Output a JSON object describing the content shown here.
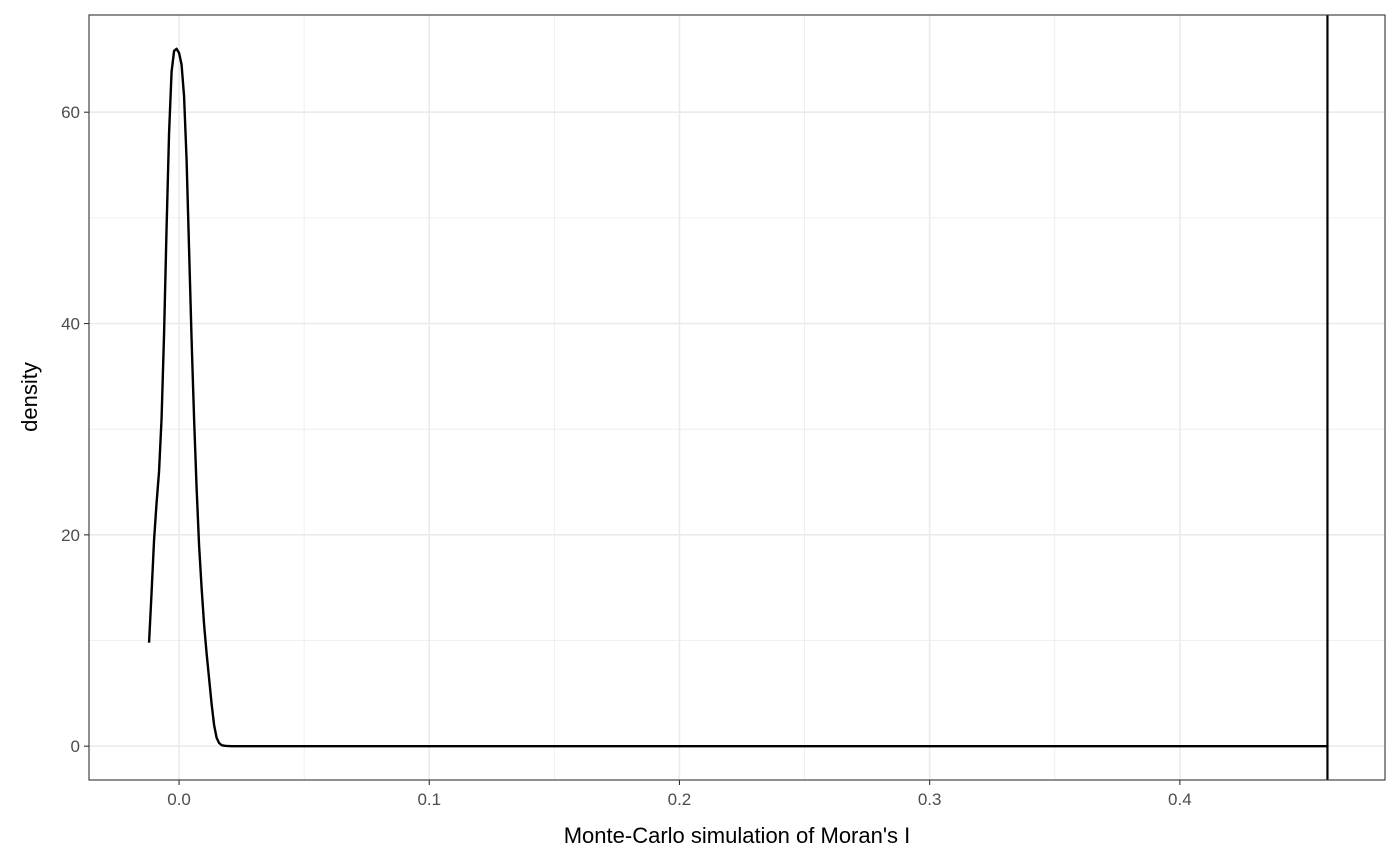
{
  "chart_data": {
    "type": "line",
    "title": "",
    "xlabel": "Monte-Carlo simulation of Moran's I",
    "ylabel": "density",
    "xlim": [
      -0.036,
      0.482
    ],
    "ylim": [
      -3.2,
      69.2
    ],
    "x_ticks": [
      0.0,
      0.1,
      0.2,
      0.3,
      0.4
    ],
    "x_tick_labels": [
      "0.0",
      "0.1",
      "0.2",
      "0.3",
      "0.4"
    ],
    "y_ticks": [
      0,
      20,
      40,
      60
    ],
    "y_tick_labels": [
      "0",
      "20",
      "40",
      "60"
    ],
    "grid": true,
    "theme": "bw",
    "series": [
      {
        "line_color": "#000000",
        "x": [
          -0.012,
          -0.011,
          -0.01,
          -0.009,
          -0.008,
          -0.007,
          -0.006,
          -0.005,
          -0.004,
          -0.003,
          -0.002,
          -0.001,
          0.0,
          0.001,
          0.002,
          0.003,
          0.004,
          0.005,
          0.006,
          0.007,
          0.008,
          0.009,
          0.01,
          0.011,
          0.012,
          0.013,
          0.014,
          0.015,
          0.016,
          0.017,
          0.018,
          0.019,
          0.02,
          0.021,
          0.022,
          0.025,
          0.03,
          0.05,
          0.1,
          0.2,
          0.3,
          0.4,
          0.459
        ],
        "y": [
          9.8,
          14.5,
          19.5,
          23.0,
          26.0,
          31.0,
          39.0,
          49.0,
          58.0,
          63.8,
          65.8,
          66.0,
          65.6,
          64.5,
          61.5,
          55.5,
          47.0,
          38.5,
          31.0,
          24.5,
          19.0,
          15.0,
          11.5,
          8.8,
          6.4,
          4.0,
          2.0,
          0.8,
          0.3,
          0.1,
          0.05,
          0.02,
          0.01,
          0.0,
          0.0,
          0.0,
          0.0,
          0.0,
          0.0,
          0.0,
          0.0,
          0.0,
          0.0
        ]
      }
    ],
    "vlines": [
      {
        "x": 0.459,
        "color": "#000000"
      }
    ]
  }
}
